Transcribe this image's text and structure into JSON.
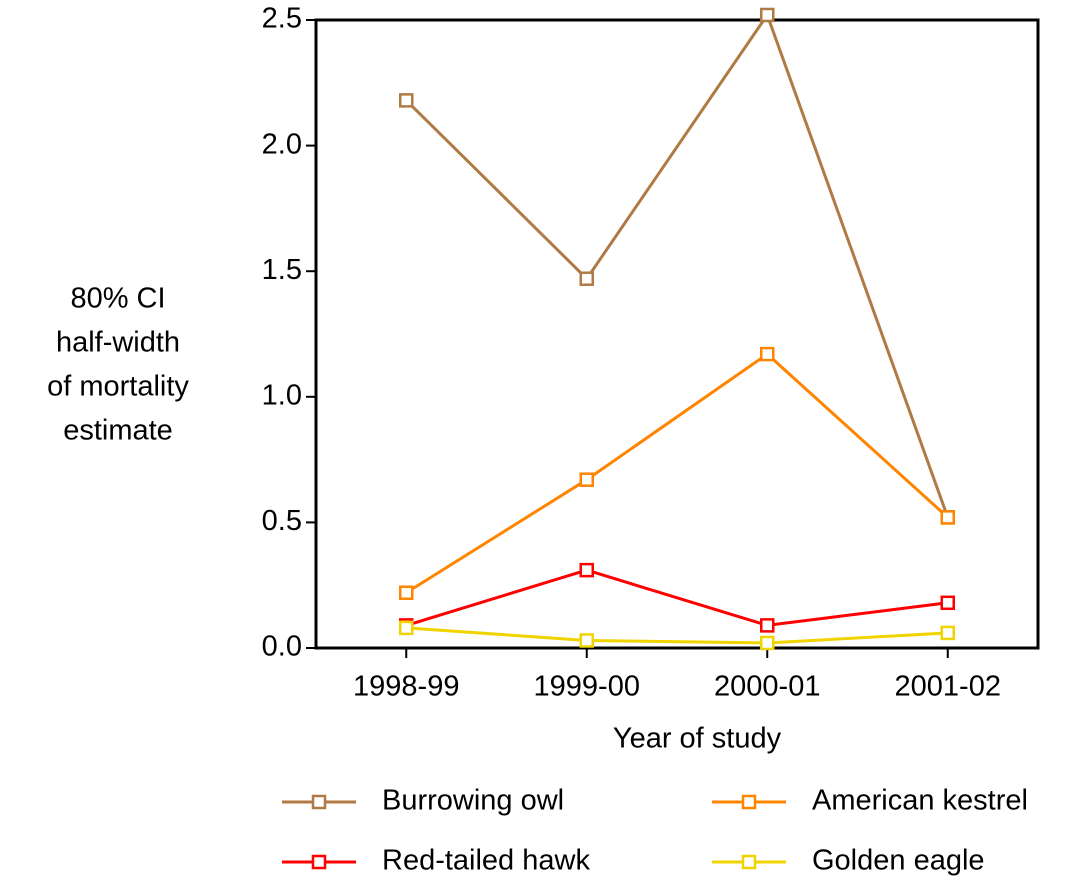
{
  "chart_data": {
    "type": "line",
    "ylabel": [
      "80% CI",
      "half-width",
      "of mortality",
      "estimate"
    ],
    "xlabel": "Year of study",
    "categories": [
      "1998-99",
      "1999-00",
      "2000-01",
      "2001-02"
    ],
    "series": [
      {
        "name": "Burrowing owl",
        "color": "#b07a45",
        "values": [
          2.18,
          1.47,
          2.52,
          0.52
        ]
      },
      {
        "name": "American kestrel",
        "color": "#ff8400",
        "values": [
          0.22,
          0.67,
          1.17,
          0.52
        ]
      },
      {
        "name": "Red-tailed hawk",
        "color": "#ff0000",
        "values": [
          0.09,
          0.31,
          0.09,
          0.18
        ]
      },
      {
        "name": "Golden eagle",
        "color": "#f0d400",
        "values": [
          0.08,
          0.03,
          0.02,
          0.06
        ]
      }
    ],
    "ylim": [
      0,
      2.5
    ],
    "yticks": [
      {
        "value": 0,
        "label": "0.0"
      },
      {
        "value": 0.5,
        "label": "0.5"
      },
      {
        "value": 1,
        "label": "1.0"
      },
      {
        "value": 1.5,
        "label": "1.5"
      },
      {
        "value": 2,
        "label": "2.0"
      },
      {
        "value": 2.5,
        "label": "2.5"
      }
    ]
  }
}
